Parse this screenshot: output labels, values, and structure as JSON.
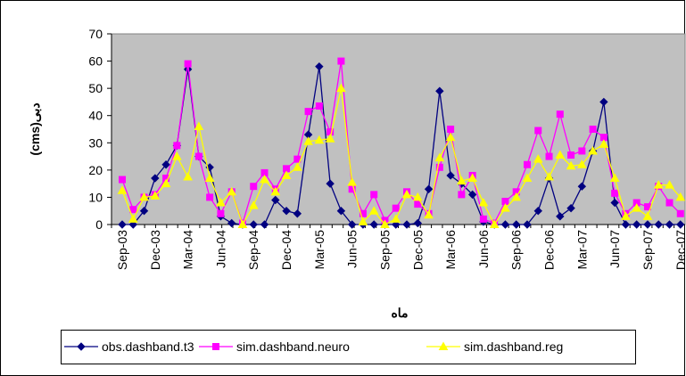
{
  "chart_data": {
    "type": "line",
    "x_label": "ماه",
    "y_label": "دبی(cms)",
    "categories": [
      "Sep-03",
      null,
      null,
      "Dec-03",
      null,
      null,
      "Mar-04",
      null,
      null,
      "Jun-04",
      null,
      null,
      "Sep-04",
      null,
      null,
      "Dec-04",
      null,
      null,
      "Mar-05",
      null,
      null,
      "Jun-05",
      null,
      null,
      "Sep-05",
      null,
      null,
      "Dec-05",
      null,
      null,
      "Mar-06",
      null,
      null,
      "Jun-06",
      null,
      null,
      "Sep-06",
      null,
      null,
      "Dec-06",
      null,
      null,
      "Mar-07",
      null,
      null,
      "Jun-07",
      null,
      null,
      "Sep-07",
      null,
      null,
      "Dec-07"
    ],
    "series": [
      {
        "name": "obs.dashband.t3",
        "color": "#000080",
        "marker": "diamond",
        "values": [
          0,
          0,
          5,
          17,
          22,
          29,
          57,
          25,
          21,
          3,
          0.5,
          0,
          0,
          0,
          9,
          5,
          4,
          33,
          58,
          15,
          5,
          0,
          0,
          0,
          0,
          0,
          0,
          0.5,
          13,
          49,
          18,
          15,
          11,
          1,
          0,
          0,
          0,
          0,
          5,
          17,
          3,
          6,
          14,
          27,
          45,
          8,
          0,
          0,
          0,
          0,
          0,
          0
        ]
      },
      {
        "name": "sim.dashband.neuro",
        "color": "#ff00ff",
        "marker": "square",
        "values": [
          16.5,
          5.5,
          10,
          11,
          17,
          29,
          59,
          25,
          10,
          4,
          12,
          0.5,
          14,
          19,
          13,
          20.5,
          24,
          41.5,
          43.5,
          34,
          60,
          13,
          4,
          11,
          1.5,
          6,
          12,
          7.5,
          4,
          21,
          35,
          11,
          18,
          2,
          0.5,
          8.5,
          12,
          22,
          34.5,
          25,
          40.5,
          25.5,
          27,
          35,
          32,
          11.5,
          4,
          8,
          6.5,
          14,
          8,
          4
        ]
      },
      {
        "name": "sim.dashband.reg",
        "color": "#ffff00",
        "marker": "triangle",
        "values": [
          12.5,
          2,
          10,
          10.5,
          15,
          25,
          17.5,
          36,
          17,
          8,
          12,
          0,
          7,
          16.5,
          12,
          18,
          21,
          30.5,
          31,
          31.5,
          50,
          15.5,
          1,
          5,
          0,
          2,
          11,
          10,
          3.5,
          24.5,
          32,
          16,
          17,
          8,
          0,
          6,
          10,
          17,
          24,
          17.5,
          25.5,
          21.5,
          22,
          27,
          29.5,
          17,
          3,
          6,
          3,
          14.5,
          14.5,
          10
        ]
      }
    ],
    "ylim": [
      0,
      70
    ],
    "yticks": [
      0,
      10,
      20,
      30,
      40,
      50,
      60,
      70
    ],
    "plot_background": "#c0c0c0",
    "grid": false,
    "legend": "bottom"
  }
}
